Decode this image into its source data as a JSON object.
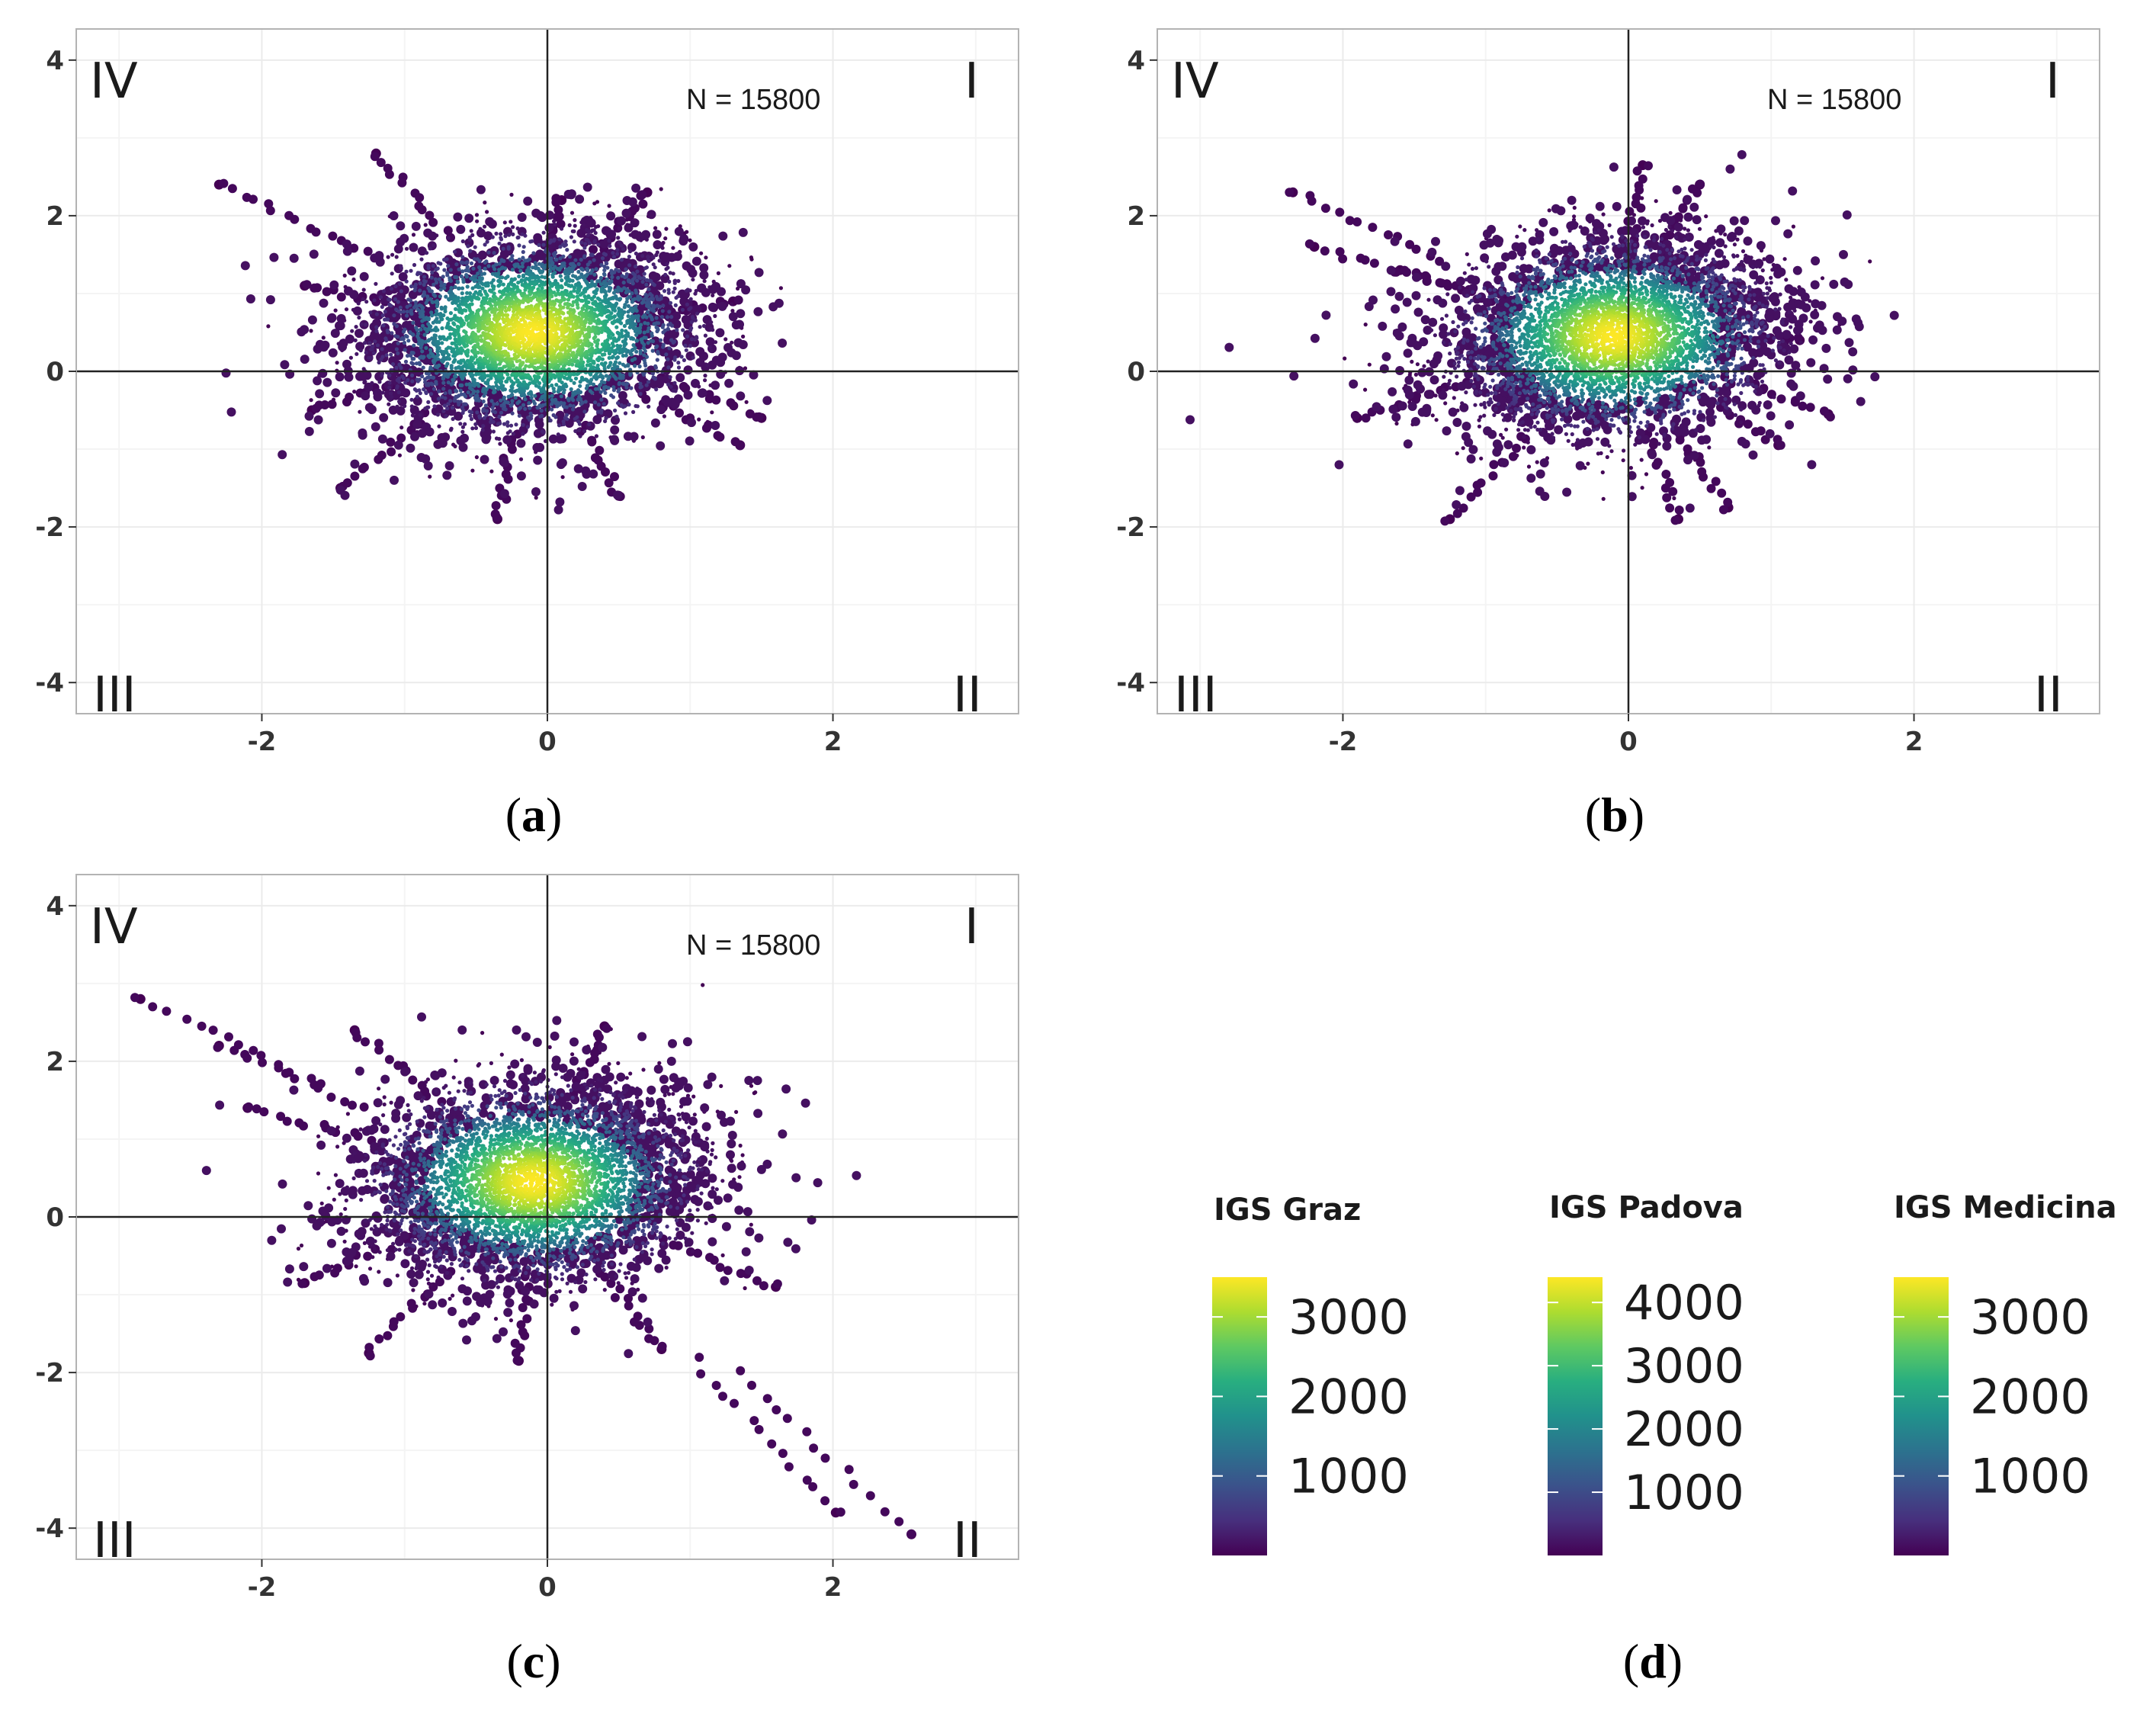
{
  "colors": {
    "viridis": [
      "#440154",
      "#472f7d",
      "#3b528b",
      "#2c728e",
      "#21918c",
      "#28ae80",
      "#5ec962",
      "#addc30",
      "#fde725"
    ],
    "axis": "#333333",
    "grid": "#ebebeb",
    "panel_border": "#b3b3b3"
  },
  "panels": {
    "a": {
      "label_open": "(",
      "label_letter": "a",
      "label_close": ")",
      "n_text": "N = 15800",
      "quadrants": {
        "I": "I",
        "II": "II",
        "III": "III",
        "IV": "IV"
      }
    },
    "b": {
      "label_open": "(",
      "label_letter": "b",
      "label_close": ")",
      "n_text": "N = 15800",
      "quadrants": {
        "I": "I",
        "II": "II",
        "III": "III",
        "IV": "IV"
      }
    },
    "c": {
      "label_open": "(",
      "label_letter": "c",
      "label_close": ")",
      "n_text": "N = 15800",
      "quadrants": {
        "I": "I",
        "II": "II",
        "III": "III",
        "IV": "IV"
      }
    },
    "d": {
      "label_open": "(",
      "label_letter": "d",
      "label_close": ")"
    }
  },
  "chart_data": [
    {
      "id": "a",
      "type": "scatter",
      "title": "",
      "annotation": "N = 15800",
      "n": 15800,
      "xlim": [
        -3.3,
        3.3
      ],
      "ylim": [
        -4.4,
        4.4
      ],
      "x_ticks": [
        -2,
        0,
        2
      ],
      "y_ticks": [
        -4,
        -2,
        0,
        2,
        4
      ],
      "x_tick_labels": [
        "-2",
        "0",
        "2"
      ],
      "y_tick_labels": [
        "-4",
        "-2",
        "0",
        "2",
        "4"
      ],
      "grid": true,
      "reference_lines": {
        "x": 0,
        "y": 0
      },
      "quadrant_labels": [
        "I",
        "II",
        "III",
        "IV"
      ],
      "color_by": "point density (IGS Graz)",
      "cloud": {
        "center": [
          -0.1,
          0.5
        ],
        "sd": [
          0.5,
          0.55
        ],
        "rho": 0.1
      },
      "extremes": [
        [
          -2.3,
          2.4
        ],
        [
          -1.2,
          2.8
        ],
        [
          -1.7,
          1.1
        ],
        [
          1.5,
          -0.6
        ],
        [
          1.35,
          -0.95
        ],
        [
          -0.35,
          -1.9
        ],
        [
          -1.45,
          -1.5
        ],
        [
          0.7,
          2.3
        ],
        [
          1.3,
          0.9
        ],
        [
          -1.65,
          -0.5
        ],
        [
          0.5,
          -1.6
        ],
        [
          0.1,
          2.2
        ]
      ]
    },
    {
      "id": "b",
      "type": "scatter",
      "title": "",
      "annotation": "N = 15800",
      "n": 15800,
      "xlim": [
        -3.3,
        3.3
      ],
      "ylim": [
        -4.4,
        4.4
      ],
      "x_ticks": [
        -2,
        0,
        2
      ],
      "y_ticks": [
        -4,
        -2,
        0,
        2,
        4
      ],
      "x_tick_labels": [
        "-2",
        "0",
        "2"
      ],
      "y_tick_labels": [
        "-4",
        "-2",
        "0",
        "2",
        "4"
      ],
      "grid": true,
      "reference_lines": {
        "x": 0,
        "y": 0
      },
      "quadrant_labels": [
        "I",
        "II",
        "III",
        "IV"
      ],
      "color_by": "point density (IGS Padova)",
      "cloud": {
        "center": [
          -0.1,
          0.45
        ],
        "sd": [
          0.5,
          0.55
        ],
        "rho": 0.15
      },
      "extremes": [
        [
          -2.35,
          2.3
        ],
        [
          -2.2,
          1.6
        ],
        [
          -1.9,
          -0.6
        ],
        [
          -1.25,
          -1.9
        ],
        [
          0.1,
          2.65
        ],
        [
          1.4,
          -0.55
        ],
        [
          1.05,
          -0.95
        ],
        [
          0.7,
          -1.75
        ],
        [
          0.35,
          -1.9
        ],
        [
          -1.6,
          1.3
        ],
        [
          1.2,
          0.4
        ],
        [
          0.5,
          2.4
        ]
      ]
    },
    {
      "id": "c",
      "type": "scatter",
      "title": "",
      "annotation": "N = 15800",
      "n": 15800,
      "xlim": [
        -3.3,
        3.3
      ],
      "ylim": [
        -4.4,
        4.4
      ],
      "x_ticks": [
        -2,
        0,
        2
      ],
      "y_ticks": [
        -4,
        -2,
        0,
        2,
        4
      ],
      "x_tick_labels": [
        "-2",
        "0",
        "2"
      ],
      "y_tick_labels": [
        "-4",
        "-2",
        "0",
        "2",
        "4"
      ],
      "grid": true,
      "reference_lines": {
        "x": 0,
        "y": 0
      },
      "quadrant_labels": [
        "I",
        "II",
        "III",
        "IV"
      ],
      "color_by": "point density (IGS Medicina)",
      "cloud": {
        "center": [
          -0.1,
          0.45
        ],
        "sd": [
          0.5,
          0.55
        ],
        "rho": 0.1
      },
      "extremes": [
        [
          -2.85,
          2.8
        ],
        [
          2.02,
          -3.8
        ],
        [
          2.55,
          -4.08
        ],
        [
          -2.3,
          2.2
        ],
        [
          -1.35,
          2.4
        ],
        [
          0.4,
          2.45
        ],
        [
          1.6,
          -0.9
        ],
        [
          -1.7,
          -0.85
        ],
        [
          -1.25,
          -1.75
        ],
        [
          -0.2,
          -1.85
        ],
        [
          0.8,
          -1.7
        ],
        [
          -2.1,
          1.4
        ]
      ]
    },
    {
      "id": "d",
      "type": "legend",
      "colorbars": [
        {
          "title": "IGS Graz",
          "min": 0,
          "max": 3500,
          "ticks": [
            1000,
            2000,
            3000
          ],
          "tick_labels": [
            "1000",
            "2000",
            "3000"
          ]
        },
        {
          "title": "IGS Padova",
          "min": 0,
          "max": 4400,
          "ticks": [
            1000,
            2000,
            3000,
            4000
          ],
          "tick_labels": [
            "1000",
            "2000",
            "3000",
            "4000"
          ]
        },
        {
          "title": "IGS Medicina",
          "min": 0,
          "max": 3500,
          "ticks": [
            1000,
            2000,
            3000
          ],
          "tick_labels": [
            "1000",
            "2000",
            "3000"
          ]
        }
      ]
    }
  ]
}
